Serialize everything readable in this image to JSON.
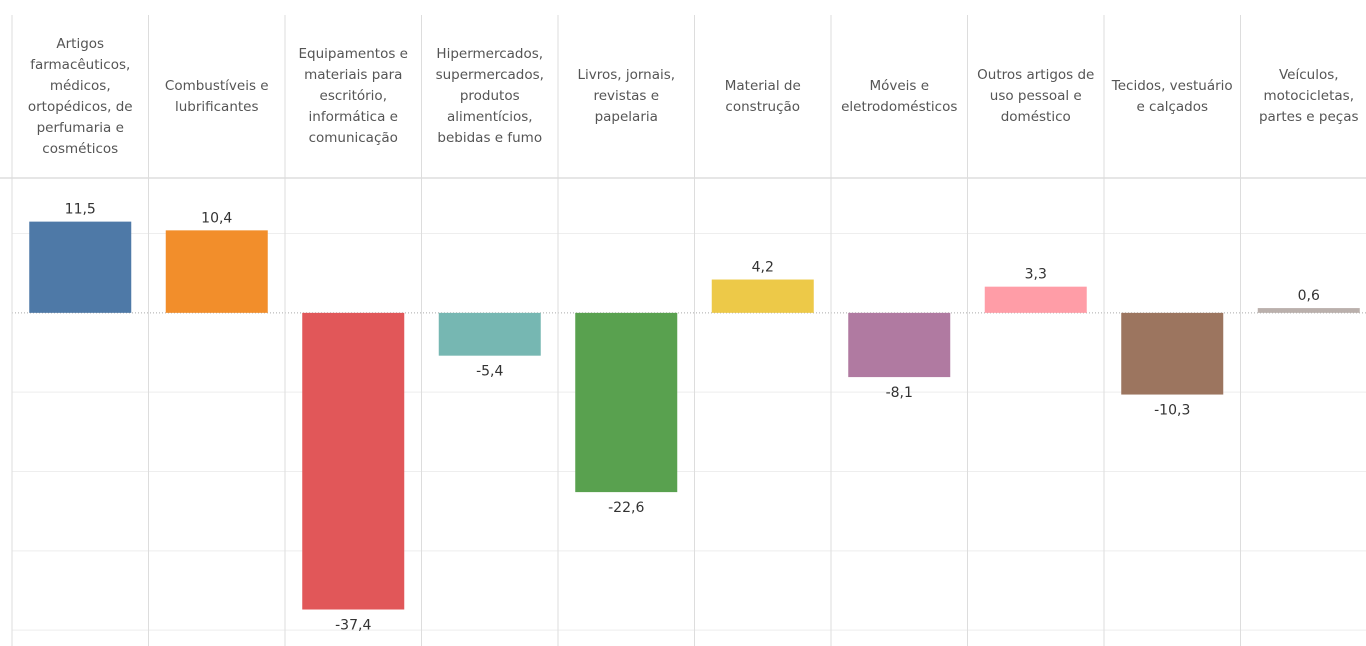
{
  "chart_data": {
    "type": "bar",
    "categories": [
      "Artigos farmacêuticos, médicos, ortopédicos, de perfumaria e cosméticos",
      "Combustíveis e lubrificantes",
      "Equipamentos e materiais para escritório, informática e comunicação",
      "Hipermercados, supermercados, produtos alimentícios, bebidas e fumo",
      "Livros, jornais, revistas e papelaria",
      "Material de construção",
      "Móveis e eletrodomésticos",
      "Outros artigos de uso pessoal e doméstico",
      "Tecidos, vestuário e calçados",
      "Veículos, motocicletas, partes e peças"
    ],
    "values": [
      11.5,
      10.4,
      -37.4,
      -5.4,
      -22.6,
      4.2,
      -8.1,
      3.3,
      -10.3,
      0.6
    ],
    "value_labels": [
      "11,5",
      "10,4",
      "-37,4",
      "-5,4",
      "-22,6",
      "4,2",
      "-8,1",
      "3,3",
      "-10,3",
      "0,6"
    ],
    "colors": [
      "#4e79a7",
      "#f28e2b",
      "#e15759",
      "#76b7b2",
      "#59a14f",
      "#edc948",
      "#b07aa1",
      "#ff9da7",
      "#9c755f",
      "#bab0ac"
    ],
    "ylim": [
      -42,
      17
    ],
    "yticks": [
      -40,
      -30,
      -20,
      -10,
      0,
      10
    ],
    "grid": true
  }
}
